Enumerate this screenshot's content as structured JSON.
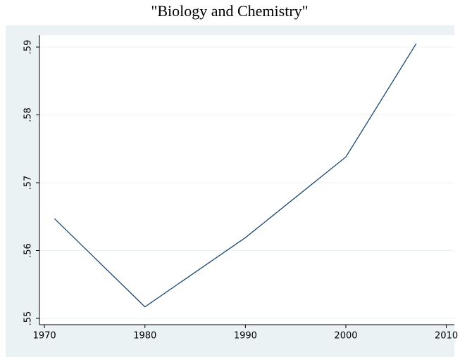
{
  "chart_data": {
    "type": "line",
    "title": "\"Biology and Chemistry\"",
    "x": [
      1971,
      1980,
      1990,
      2000,
      2007
    ],
    "series": [
      {
        "color": "#1a476f",
        "values": [
          0.5647,
          0.5517,
          0.5619,
          0.5738,
          0.5905
        ]
      }
    ],
    "xlim": [
      1969.5,
      2010.8
    ],
    "xticks": [
      1970,
      1980,
      1990,
      2000,
      2010
    ],
    "ylim": [
      0.54907,
      0.59176
    ],
    "yticks": [
      {
        "value": 0.55,
        "label": ".55"
      },
      {
        "value": 0.56,
        "label": ".56"
      },
      {
        "value": 0.57,
        "label": ".57"
      },
      {
        "value": 0.58,
        "label": ".58"
      },
      {
        "value": 0.59,
        "label": ".59"
      }
    ],
    "grid": true
  }
}
